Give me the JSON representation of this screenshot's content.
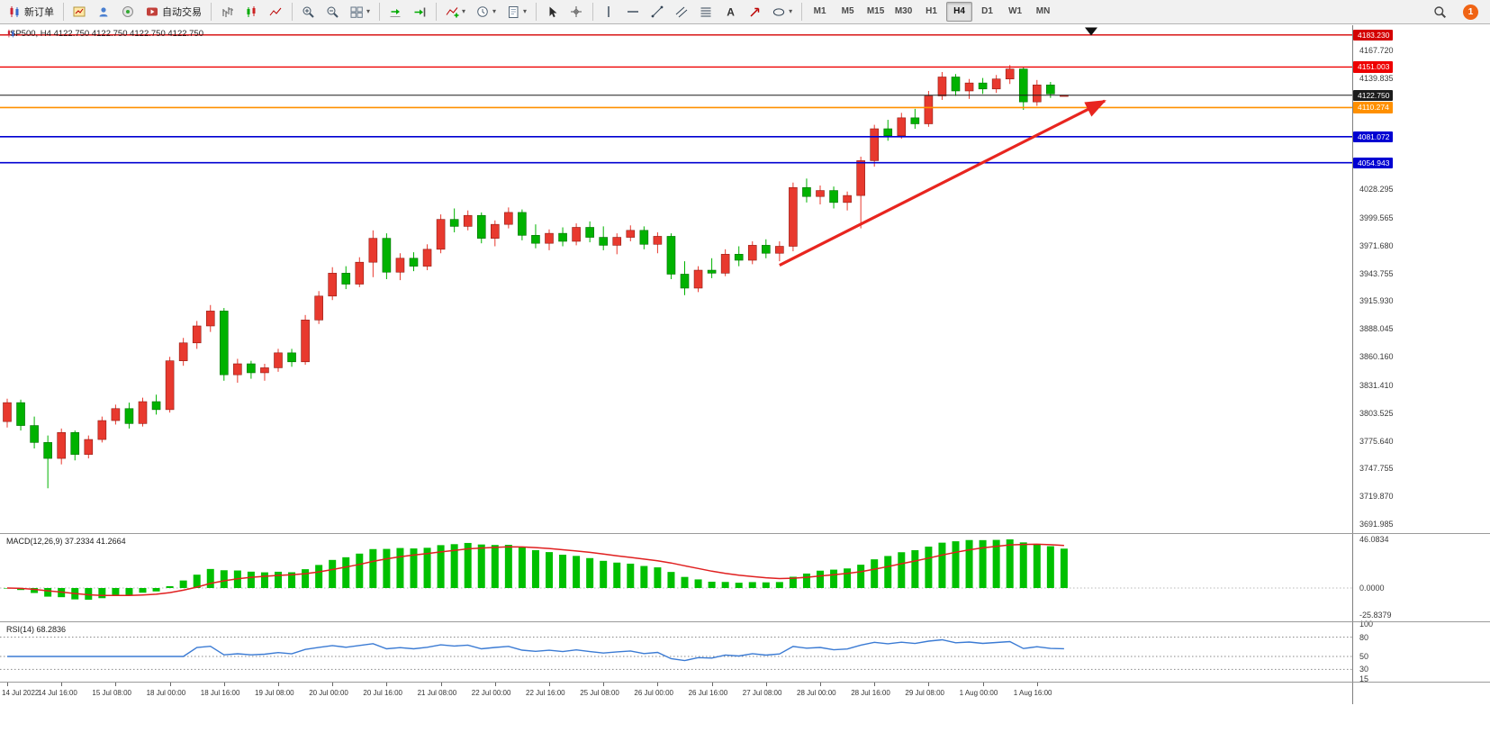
{
  "toolbar": {
    "groups": [
      {
        "items": [
          {
            "name": "new-order-button",
            "icon": "new-order",
            "label": "新订单"
          }
        ]
      },
      {
        "items": [
          {
            "name": "new-chart-button",
            "icon": "chart-window"
          },
          {
            "name": "profiles-button",
            "icon": "profiles"
          },
          {
            "name": "market-watch-button",
            "icon": "community"
          },
          {
            "name": "autotrading-button",
            "icon": "autotrade",
            "label": "自动交易"
          }
        ]
      },
      {
        "items": [
          {
            "name": "bar-chart-button",
            "icon": "bars"
          },
          {
            "name": "candlestick-chart-button",
            "icon": "candles"
          },
          {
            "name": "line-chart-button",
            "icon": "line"
          }
        ]
      },
      {
        "items": [
          {
            "name": "zoom-in-button",
            "icon": "zoom-in"
          },
          {
            "name": "zoom-out-button",
            "icon": "zoom-out"
          },
          {
            "name": "tile-windows-button",
            "icon": "tile",
            "has_dropdown": true
          }
        ]
      },
      {
        "items": [
          {
            "name": "auto-scroll-button",
            "icon": "autoscroll"
          },
          {
            "name": "chart-shift-button",
            "icon": "shift"
          }
        ]
      },
      {
        "items": [
          {
            "name": "indicators-button",
            "icon": "indicators",
            "has_dropdown": true
          },
          {
            "name": "periods-button",
            "icon": "clock",
            "has_dropdown": true
          },
          {
            "name": "templates-button",
            "icon": "templates",
            "has_dropdown": true
          }
        ]
      },
      {
        "items": [
          {
            "name": "cursor-button",
            "icon": "cursor"
          },
          {
            "name": "crosshair-button",
            "icon": "crosshair"
          }
        ]
      },
      {
        "items": [
          {
            "name": "vertical-line-button",
            "icon": "vline"
          },
          {
            "name": "horizontal-line-button",
            "icon": "hline"
          },
          {
            "name": "trendline-button",
            "icon": "trendline"
          },
          {
            "name": "channel-button",
            "icon": "channel"
          },
          {
            "name": "fibonacci-button",
            "icon": "fibo"
          },
          {
            "name": "text-button",
            "icon": "text"
          },
          {
            "name": "arrows-button",
            "icon": "arrows"
          },
          {
            "name": "shapes-button",
            "icon": "shapes",
            "has_dropdown": true
          }
        ]
      }
    ],
    "timeframes": {
      "items": [
        "M1",
        "M5",
        "M15",
        "M30",
        "H1",
        "H4",
        "D1",
        "W1",
        "MN"
      ],
      "active": "H4"
    },
    "right": [
      {
        "name": "search-button",
        "icon": "search"
      },
      {
        "name": "notifications-button",
        "badge": "1"
      }
    ]
  },
  "chart": {
    "header": {
      "symbol_line": "SP500, H4  4122.750 4122.750 4122.750 4122.750"
    }
  },
  "chart_data": {
    "type": "candlestick",
    "symbol": "SP500",
    "timeframe": "H4",
    "price_range": {
      "max": 4193,
      "min": 3683
    },
    "current_price": 4122.75,
    "ohlc": [
      [
        3795,
        3818,
        3789,
        3814
      ],
      [
        3814,
        3817,
        3786,
        3791
      ],
      [
        3791,
        3800,
        3768,
        3774
      ],
      [
        3774,
        3781,
        3728,
        3758
      ],
      [
        3758,
        3788,
        3752,
        3784
      ],
      [
        3784,
        3786,
        3756,
        3762
      ],
      [
        3762,
        3781,
        3758,
        3777
      ],
      [
        3777,
        3800,
        3774,
        3796
      ],
      [
        3796,
        3812,
        3792,
        3808
      ],
      [
        3808,
        3814,
        3788,
        3793
      ],
      [
        3793,
        3819,
        3790,
        3815
      ],
      [
        3815,
        3822,
        3802,
        3807
      ],
      [
        3807,
        3860,
        3804,
        3856
      ],
      [
        3856,
        3879,
        3851,
        3874
      ],
      [
        3874,
        3896,
        3868,
        3891
      ],
      [
        3891,
        3912,
        3885,
        3906
      ],
      [
        3906,
        3909,
        3836,
        3842
      ],
      [
        3842,
        3858,
        3834,
        3853
      ],
      [
        3853,
        3856,
        3838,
        3844
      ],
      [
        3844,
        3853,
        3836,
        3849
      ],
      [
        3849,
        3868,
        3845,
        3864
      ],
      [
        3864,
        3868,
        3850,
        3855
      ],
      [
        3855,
        3902,
        3852,
        3897
      ],
      [
        3897,
        3926,
        3893,
        3921
      ],
      [
        3921,
        3950,
        3917,
        3944
      ],
      [
        3944,
        3951,
        3928,
        3933
      ],
      [
        3933,
        3960,
        3930,
        3955
      ],
      [
        3955,
        3987,
        3940,
        3979
      ],
      [
        3979,
        3984,
        3938,
        3945
      ],
      [
        3945,
        3964,
        3937,
        3959
      ],
      [
        3959,
        3965,
        3946,
        3951
      ],
      [
        3951,
        3973,
        3947,
        3968
      ],
      [
        3968,
        4003,
        3964,
        3998
      ],
      [
        3998,
        4009,
        3985,
        3991
      ],
      [
        3991,
        4007,
        3987,
        4002
      ],
      [
        4002,
        4005,
        3974,
        3979
      ],
      [
        3979,
        3997,
        3971,
        3993
      ],
      [
        3993,
        4010,
        3989,
        4005
      ],
      [
        4005,
        4008,
        3977,
        3982
      ],
      [
        3982,
        3993,
        3969,
        3974
      ],
      [
        3974,
        3988,
        3967,
        3984
      ],
      [
        3984,
        3990,
        3971,
        3976
      ],
      [
        3976,
        3994,
        3972,
        3990
      ],
      [
        3990,
        3996,
        3975,
        3980
      ],
      [
        3980,
        3991,
        3967,
        3972
      ],
      [
        3972,
        3984,
        3963,
        3980
      ],
      [
        3980,
        3992,
        3976,
        3987
      ],
      [
        3987,
        3991,
        3968,
        3973
      ],
      [
        3973,
        3985,
        3964,
        3981
      ],
      [
        3981,
        3984,
        3938,
        3943
      ],
      [
        3943,
        3956,
        3922,
        3929
      ],
      [
        3929,
        3951,
        3925,
        3947
      ],
      [
        3947,
        3959,
        3939,
        3944
      ],
      [
        3944,
        3968,
        3941,
        3963
      ],
      [
        3963,
        3971,
        3951,
        3957
      ],
      [
        3957,
        3976,
        3953,
        3972
      ],
      [
        3972,
        3978,
        3959,
        3964
      ],
      [
        3964,
        3976,
        3956,
        3971
      ],
      [
        3971,
        4035,
        3966,
        4030
      ],
      [
        4030,
        4039,
        4015,
        4021
      ],
      [
        4021,
        4032,
        4013,
        4027
      ],
      [
        4027,
        4031,
        4009,
        4015
      ],
      [
        4015,
        4026,
        4007,
        4022
      ],
      [
        4022,
        4061,
        3989,
        4057
      ],
      [
        4057,
        4093,
        4051,
        4089
      ],
      [
        4089,
        4098,
        4077,
        4082
      ],
      [
        4082,
        4105,
        4079,
        4100
      ],
      [
        4100,
        4109,
        4089,
        4094
      ],
      [
        4094,
        4127,
        4091,
        4122
      ],
      [
        4122,
        4146,
        4118,
        4141
      ],
      [
        4141,
        4144,
        4122,
        4127
      ],
      [
        4127,
        4139,
        4119,
        4135
      ],
      [
        4135,
        4140,
        4124,
        4129
      ],
      [
        4129,
        4143,
        4125,
        4139
      ],
      [
        4139,
        4153,
        4134,
        4149
      ],
      [
        4149,
        4151,
        4108,
        4116
      ],
      [
        4116,
        4138,
        4112,
        4133
      ],
      [
        4133,
        4136,
        4120,
        4124
      ],
      [
        4122.75,
        4122.75,
        4122.75,
        4122.75
      ]
    ],
    "x_labels": [
      "14 Jul 2022",
      "14 Jul 16:00",
      "15 Jul 08:00",
      "18 Jul 00:00",
      "18 Jul 16:00",
      "19 Jul 08:00",
      "20 Jul 00:00",
      "20 Jul 16:00",
      "21 Jul 08:00",
      "22 Jul 00:00",
      "22 Jul 16:00",
      "25 Jul 08:00",
      "26 Jul 00:00",
      "26 Jul 16:00",
      "27 Jul 08:00",
      "28 Jul 00:00",
      "28 Jul 16:00",
      "29 Jul 08:00",
      "1 Aug 00:00",
      "1 Aug 16:00"
    ],
    "x_label_step": 4,
    "y_axis_labels": [
      "4167.720",
      "4139.835",
      "4028.295",
      "3999.565",
      "3971.680",
      "3943.755",
      "3915.930",
      "3888.045",
      "3860.160",
      "3831.410",
      "3803.525",
      "3775.640",
      "3747.755",
      "3719.870",
      "3691.985"
    ],
    "levels": [
      {
        "price": 4183.23,
        "label": "4183.230",
        "color": "#d40000",
        "width": 1.4
      },
      {
        "price": 4151.003,
        "label": "4151.003",
        "color": "#ee0000",
        "width": 1.4
      },
      {
        "price": 4122.75,
        "label": "4122.750",
        "color": "#1c1c1c",
        "width": 1,
        "current": true
      },
      {
        "price": 4110.274,
        "label": "4110.274",
        "color": "#ff9000",
        "width": 1.6
      },
      {
        "price": 4081.072,
        "label": "4081.072",
        "color": "#0000d2",
        "width": 1.6
      },
      {
        "price": 4054.943,
        "label": "4054.943",
        "color": "#0000d2",
        "width": 1.6
      }
    ],
    "trend_arrow": {
      "from_index": 57,
      "from_price": 3952,
      "to_index": 81,
      "to_price": 4117
    },
    "marker_triangle": {
      "index": 80,
      "price": 4188
    }
  },
  "panels": {
    "macd": {
      "label": "MACD(12,26,9) 37.2334 41.2664",
      "fast": 12,
      "slow": 26,
      "signal": 9,
      "axis": [
        "46.0834",
        "0.0000",
        "-25.8379"
      ]
    },
    "rsi": {
      "label": "RSI(14) 68.2836",
      "period": 14,
      "axis": [
        "100",
        "80",
        "50",
        "30",
        "15"
      ],
      "levels": [
        80,
        50,
        30
      ]
    }
  },
  "colors": {
    "bull": "#e8392e",
    "bull_border": "#8f1a12",
    "bear": "#00b200",
    "bear_border": "#006e00",
    "macd_hist": "#00c000",
    "macd_signal": "#e02020",
    "rsi_line": "#3b7bd4",
    "arrow": "#e8251f",
    "marker": "#111111"
  }
}
